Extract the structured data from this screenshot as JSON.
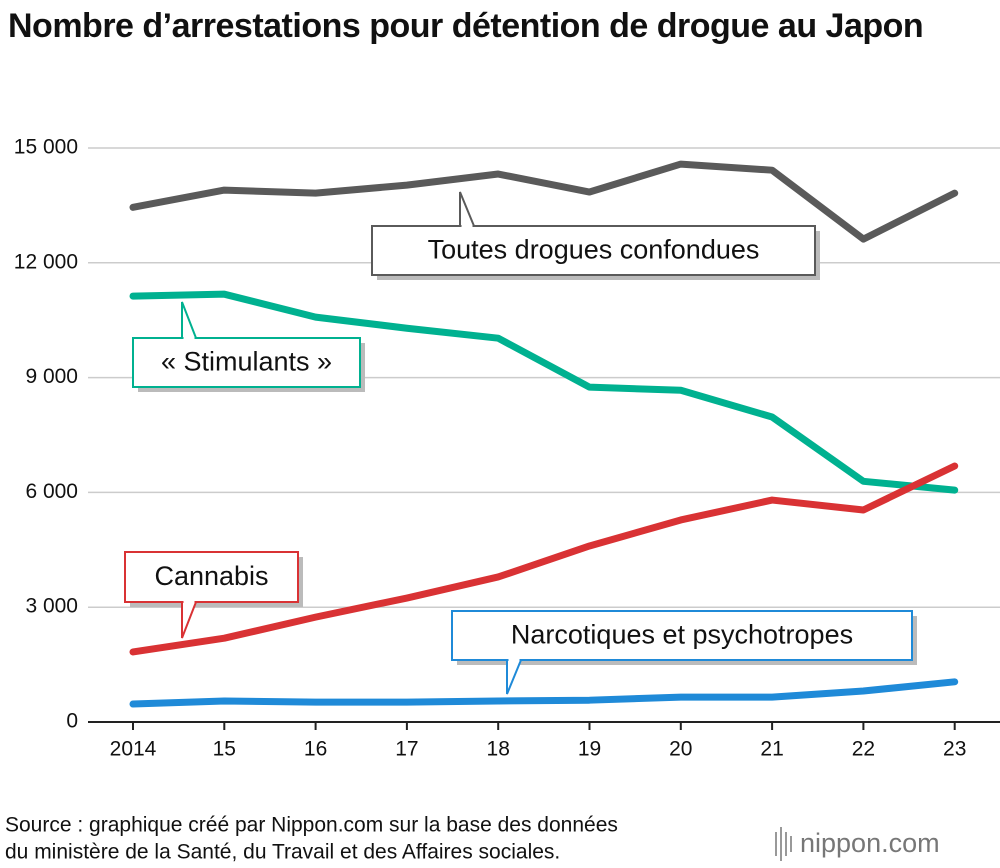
{
  "chart_data": {
    "type": "line",
    "title": "Nombre d’arrestations pour détention de drogue au Japon",
    "categories": [
      "2014",
      "15",
      "16",
      "17",
      "18",
      "19",
      "20",
      "21",
      "22",
      "23"
    ],
    "series": [
      {
        "name": "Toutes drogues confondues",
        "color": "#5a5a5a",
        "values": [
          13450,
          13900,
          13820,
          14030,
          14320,
          13850,
          14580,
          14420,
          12620,
          13820
        ]
      },
      {
        "name": "« Stimulants »",
        "color": "#00b190",
        "values": [
          11130,
          11180,
          10580,
          10290,
          10030,
          8750,
          8670,
          7970,
          6290,
          6060
        ]
      },
      {
        "name": "Cannabis",
        "color": "#d93234",
        "values": [
          1830,
          2190,
          2740,
          3240,
          3790,
          4600,
          5280,
          5800,
          5540,
          6690
        ]
      },
      {
        "name": "Narcotiques et psychotropes",
        "color": "#1f8ad8",
        "values": [
          470,
          550,
          520,
          520,
          550,
          570,
          650,
          650,
          810,
          1050
        ]
      }
    ],
    "ylim": [
      0,
      15000
    ],
    "yticks": [
      0,
      {
        "value": 3000,
        "label": "3 000"
      },
      {
        "value": 6000,
        "label": "6 000"
      },
      {
        "value": 9000,
        "label": "9 000"
      },
      {
        "value": 12000,
        "label": "12 000"
      },
      {
        "value": 15000,
        "label": "15 000"
      }
    ],
    "grid": true,
    "source": [
      "Source : graphique créé par Nippon.com sur la base des données",
      "du ministère de la Santé, du Travail et des Affaires sociales."
    ],
    "logo": "nippon.com"
  }
}
